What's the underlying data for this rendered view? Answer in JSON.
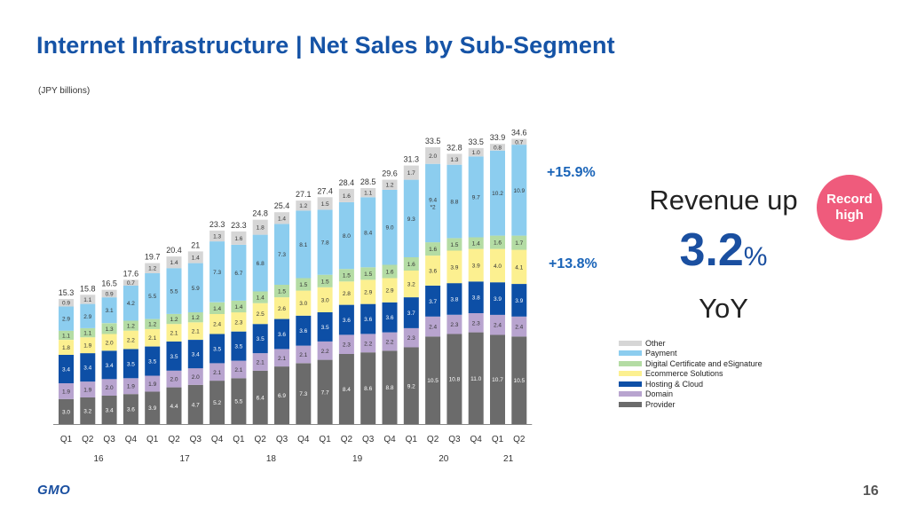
{
  "title": "Internet Infrastructure | Net Sales by Sub-Segment",
  "unit_note": "(JPY billions)",
  "growth_labels": {
    "upper": "+15.9%",
    "lower": "+13.8%"
  },
  "revenue_callout": {
    "line1": "Revenue up",
    "number": "3.2",
    "percent": "%",
    "line3": "YoY"
  },
  "badge": {
    "line1": "Record",
    "line2": "high"
  },
  "footer": {
    "logo": "GMO",
    "page_number": "16"
  },
  "colors": {
    "title": "#1553a6",
    "Provider": "#6b6b6b",
    "Domain": "#b8a4cf",
    "Hosting & Cloud": "#0d4fa6",
    "Ecommerce Solutions": "#fcf090",
    "Digital Certificate and eSignature": "#b4dca4",
    "Payment": "#8ccdef",
    "Other": "#d6d6d6",
    "badge": "#ef5b7c"
  },
  "chart_data": {
    "type": "bar",
    "stacked": true,
    "categories": [
      "Q1",
      "Q2",
      "Q3",
      "Q4",
      "Q1",
      "Q2",
      "Q3",
      "Q4",
      "Q1",
      "Q2",
      "Q3",
      "Q4",
      "Q1",
      "Q2",
      "Q3",
      "Q4",
      "Q1",
      "Q2",
      "Q3",
      "Q4",
      "Q1",
      "Q2"
    ],
    "year_labels": [
      {
        "label": "16",
        "quarters": 4
      },
      {
        "label": "17",
        "quarters": 4
      },
      {
        "label": "18",
        "quarters": 4
      },
      {
        "label": "19",
        "quarters": 4
      },
      {
        "label": "20",
        "quarters": 4
      },
      {
        "label": "21",
        "quarters": 2
      }
    ],
    "totals": [
      "15.3",
      "15.8",
      "16.5",
      "17.6",
      "19.7",
      "20.4",
      "21",
      "23.3",
      "23.3",
      "24.8",
      "25.4",
      "27.1",
      "27.4",
      "28.4",
      "28.5",
      "29.6",
      "31.3",
      "33.5",
      "32.8",
      "33.5",
      "33.9",
      "34.6"
    ],
    "series": [
      {
        "name": "Provider",
        "values": [
          3.0,
          3.2,
          3.4,
          3.6,
          3.9,
          4.4,
          4.7,
          5.2,
          5.5,
          6.4,
          6.9,
          7.3,
          7.7,
          8.4,
          8.6,
          8.8,
          9.2,
          10.5,
          10.8,
          11.0,
          10.7,
          10.5
        ],
        "labels": [
          "3.0",
          "3.2",
          "3.4",
          "3.6",
          "3.9",
          "4.4",
          "4.7",
          "5.2",
          "5.5",
          "6.4",
          "6.9",
          "7.3",
          "7.7",
          "8.4",
          "8.6",
          "8.8",
          "9.2",
          "10.5",
          "10.8",
          "11.0",
          "10.7",
          "10.5"
        ]
      },
      {
        "name": "Domain",
        "values": [
          1.9,
          1.9,
          2.0,
          1.9,
          1.9,
          2.0,
          2.0,
          2.1,
          2.1,
          2.1,
          2.1,
          2.1,
          2.2,
          2.3,
          2.2,
          2.2,
          2.3,
          2.4,
          2.3,
          2.3,
          2.4,
          2.4
        ],
        "labels": [
          "1.9",
          "1.9",
          "2.0",
          "1.9",
          "1.9",
          "2.0",
          "2.0",
          "2.1",
          "2.1",
          "2.1",
          "2.1",
          "2.1",
          "2.2",
          "2.3",
          "2.2",
          "2.2",
          "2.3",
          "2.4",
          "2.3",
          "2.3",
          "2.4",
          "2.4"
        ]
      },
      {
        "name": "Hosting & Cloud",
        "values": [
          3.4,
          3.4,
          3.4,
          3.5,
          3.5,
          3.5,
          3.4,
          3.5,
          3.5,
          3.5,
          3.6,
          3.6,
          3.5,
          3.6,
          3.6,
          3.6,
          3.7,
          3.7,
          3.8,
          3.8,
          3.9,
          3.9
        ],
        "labels": [
          "3.4",
          "3.4",
          "3.4",
          "3.5",
          "3.5",
          "3.5",
          "3.4",
          "3.5",
          "3.5",
          "3.5",
          "3.6",
          "3.6",
          "3.5",
          "3.6",
          "3.6",
          "3.6",
          "3.7",
          "3.7",
          "3.8",
          "3.8",
          "3.9",
          "3.9"
        ]
      },
      {
        "name": "Ecommerce Solutions",
        "values": [
          1.8,
          1.9,
          2.0,
          2.2,
          2.1,
          2.1,
          2.1,
          2.4,
          2.3,
          2.5,
          2.6,
          3.0,
          3.0,
          2.8,
          2.9,
          2.9,
          3.2,
          3.6,
          3.9,
          3.9,
          4.0,
          4.1
        ],
        "labels": [
          "1.8",
          "1.9",
          "2.0",
          "2.2",
          "2.1",
          "2.1",
          "2.1",
          "2.4",
          "2.3",
          "2.5",
          "2.6",
          "3.0",
          "3.0",
          "2.8",
          "2.9",
          "2.9",
          "3.2",
          "3.6",
          "3.9",
          "3.9",
          "4.0",
          "4.1"
        ]
      },
      {
        "name": "Digital Certificate and eSignature",
        "values": [
          1.1,
          1.1,
          1.3,
          1.2,
          1.2,
          1.2,
          1.2,
          1.4,
          1.4,
          1.4,
          1.5,
          1.5,
          1.5,
          1.5,
          1.5,
          1.6,
          1.6,
          1.6,
          1.5,
          1.4,
          1.6,
          1.7
        ],
        "labels": [
          "1.1",
          "1.1",
          "1.3",
          "1.2",
          "1.2",
          "1.2",
          "1.2",
          "1.4",
          "1.4",
          "1.4",
          "1.5",
          "1.5",
          "1.5",
          "1.5",
          "1.5",
          "1.6",
          "1.6",
          "1.6",
          "1.5",
          "1.4",
          "1.6",
          "1.7"
        ]
      },
      {
        "name": "Payment",
        "values": [
          2.9,
          2.9,
          3.1,
          4.2,
          5.5,
          5.5,
          5.9,
          7.3,
          6.7,
          6.8,
          7.3,
          8.1,
          7.8,
          8.0,
          8.4,
          9.0,
          9.3,
          9.4,
          8.8,
          9.7,
          10.2,
          10.9
        ],
        "labels": [
          "2.9",
          "2.9",
          "3.1",
          "4.2",
          "5.5",
          "5.5",
          "5.9",
          "7.3",
          "6.7",
          "6.8",
          "7.3",
          "8.1",
          "7.8",
          "8.0",
          "8.4",
          "9.0",
          "9.3",
          "9.4\n*2",
          "8.8",
          "9.7",
          "10.2",
          "10.9"
        ]
      },
      {
        "name": "Other",
        "values": [
          0.9,
          1.1,
          0.9,
          0.7,
          1.2,
          1.4,
          1.4,
          1.3,
          1.6,
          1.8,
          1.4,
          1.2,
          1.5,
          1.6,
          1.1,
          1.2,
          1.7,
          2.0,
          1.3,
          1.0,
          0.8,
          0.7
        ],
        "labels": [
          "0.9",
          "1.1",
          "0.9",
          "0.7",
          "1.2",
          "1.4",
          "1.4",
          "1.3",
          "1.6",
          "1.8",
          "1.4",
          "1.2",
          "1.5",
          "1.6",
          "1.1",
          "1.2",
          "1.7",
          "2.0",
          "1.3",
          "1.0",
          "0.8",
          "0.7"
        ]
      }
    ],
    "legend_order": [
      "Other",
      "Payment",
      "Digital Certificate and eSignature",
      "Ecommerce Solutions",
      "Hosting & Cloud",
      "Domain",
      "Provider"
    ],
    "legend_placement": "bottom-right",
    "ylim": [
      0,
      35
    ],
    "grid": false
  }
}
